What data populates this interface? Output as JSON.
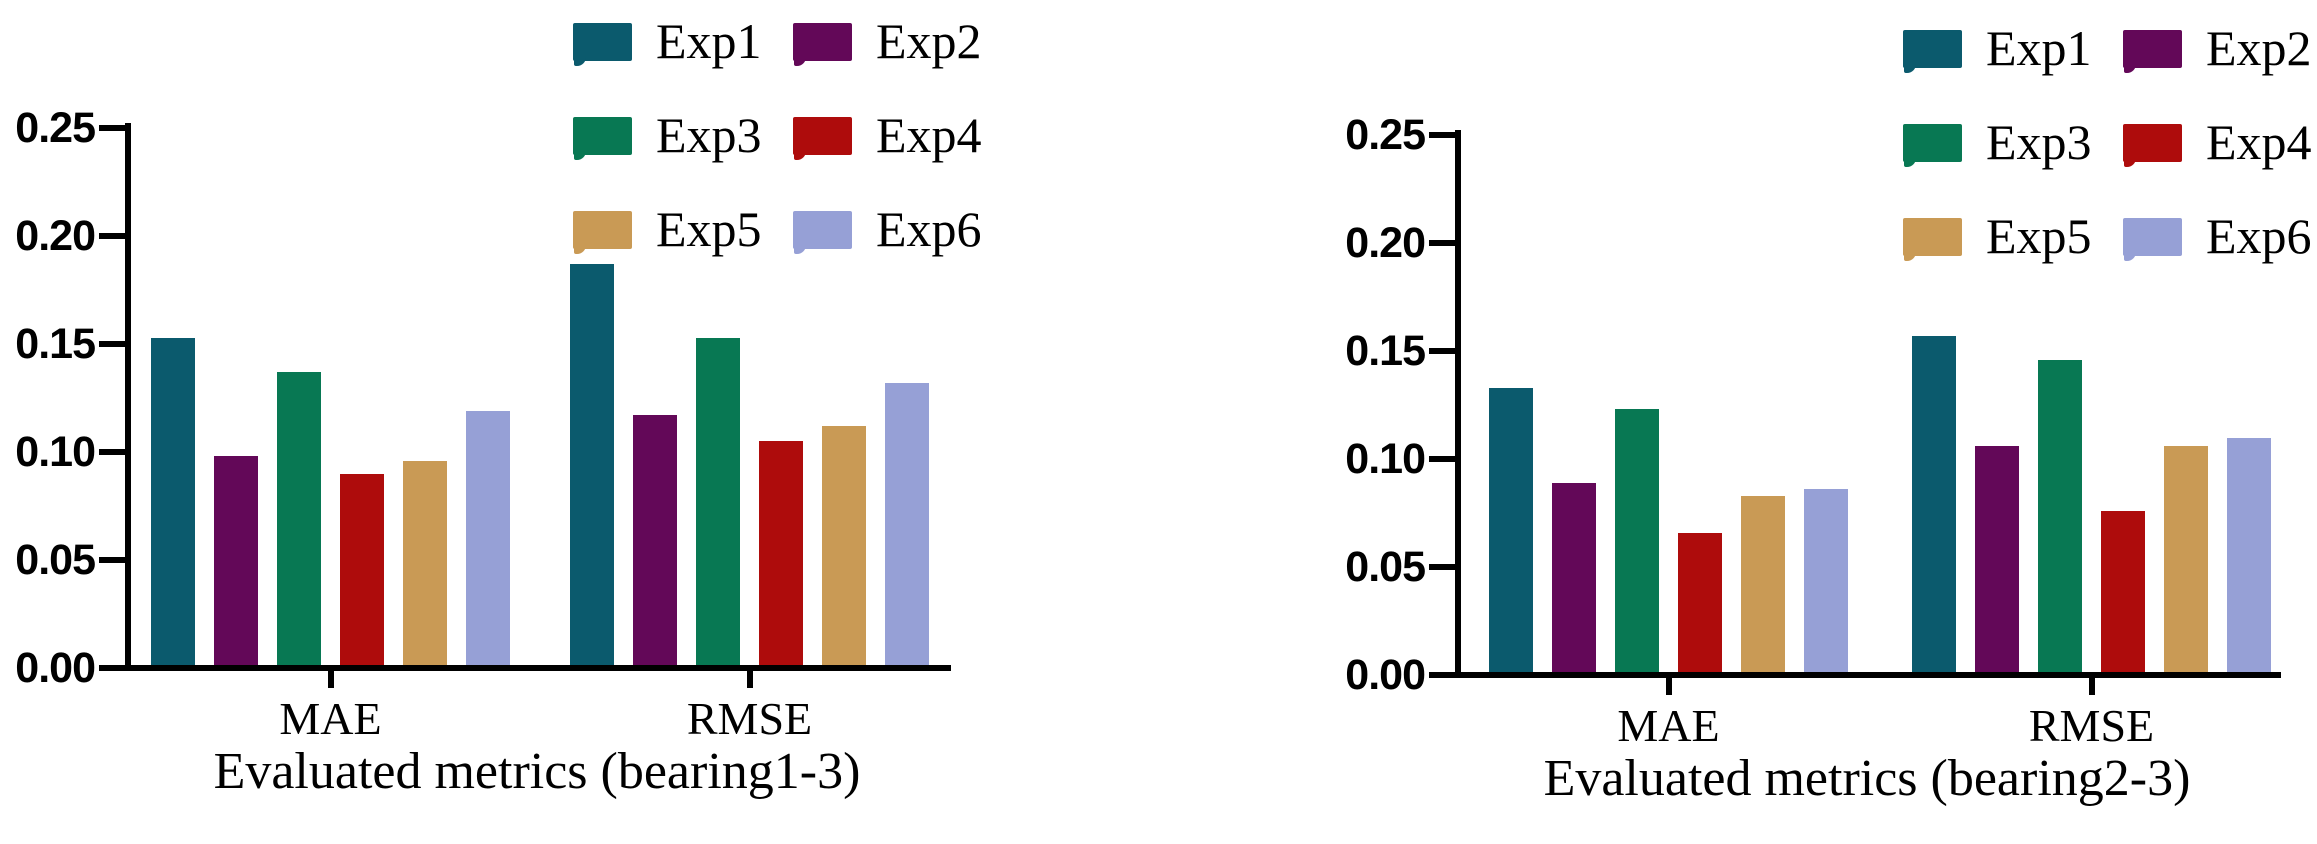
{
  "figure": {
    "background": "#ffffff",
    "axis_color": "#000000"
  },
  "chart_data": [
    {
      "type": "bar",
      "title": "Evaluated metrics (bearing1-3)",
      "xlabel": "Evaluated metrics (bearing1-3)",
      "ylabel": "",
      "categories": [
        "MAE",
        "RMSE"
      ],
      "y_tick_labels": [
        "0.00",
        "0.05",
        "0.10",
        "0.15",
        "0.20",
        "0.25"
      ],
      "ylim": [
        0,
        0.25
      ],
      "grid": false,
      "legend_position": "top-right-two-columns",
      "series": [
        {
          "name": "Exp1",
          "color": "#0B5A6D",
          "values": [
            0.152,
            0.186
          ]
        },
        {
          "name": "Exp2",
          "color": "#630858",
          "values": [
            0.097,
            0.116
          ]
        },
        {
          "name": "Exp3",
          "color": "#087853",
          "values": [
            0.136,
            0.152
          ]
        },
        {
          "name": "Exp4",
          "color": "#AE0C0C",
          "values": [
            0.089,
            0.104
          ]
        },
        {
          "name": "Exp5",
          "color": "#C99A55",
          "values": [
            0.095,
            0.111
          ]
        },
        {
          "name": "Exp6",
          "color": "#96A0D6",
          "values": [
            0.118,
            0.131
          ]
        }
      ]
    },
    {
      "type": "bar",
      "title": "Evaluated metrics (bearing2-3)",
      "xlabel": "Evaluated metrics (bearing2-3)",
      "ylabel": "",
      "categories": [
        "MAE",
        "RMSE"
      ],
      "y_tick_labels": [
        "0.00",
        "0.05",
        "0.10",
        "0.15",
        "0.20",
        "0.25"
      ],
      "ylim": [
        0,
        0.25
      ],
      "grid": false,
      "legend_position": "top-right-two-columns",
      "series": [
        {
          "name": "Exp1",
          "color": "#0B5A6D",
          "values": [
            0.132,
            0.156
          ]
        },
        {
          "name": "Exp2",
          "color": "#630858",
          "values": [
            0.088,
            0.105
          ]
        },
        {
          "name": "Exp3",
          "color": "#087853",
          "values": [
            0.122,
            0.145
          ]
        },
        {
          "name": "Exp4",
          "color": "#AE0C0C",
          "values": [
            0.065,
            0.075
          ]
        },
        {
          "name": "Exp5",
          "color": "#C99A55",
          "values": [
            0.082,
            0.105
          ]
        },
        {
          "name": "Exp6",
          "color": "#96A0D6",
          "values": [
            0.085,
            0.109
          ]
        }
      ]
    }
  ]
}
